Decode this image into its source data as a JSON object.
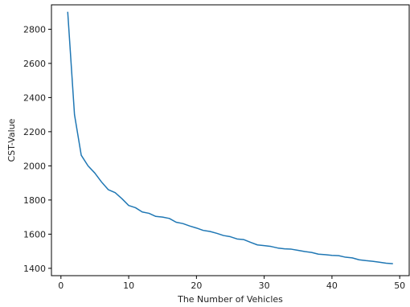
{
  "chart_data": {
    "type": "line",
    "title": "",
    "xlabel": "The Number of Vehicles",
    "ylabel": "CST-Value",
    "xlim": [
      -1.4,
      51.4
    ],
    "ylim": [
      1357,
      2943
    ],
    "xticks": [
      0,
      10,
      20,
      30,
      40,
      50
    ],
    "yticks": [
      1400,
      1600,
      1800,
      2000,
      2200,
      2400,
      2600,
      2800
    ],
    "grid": false,
    "legend": "none",
    "series": [
      {
        "color": "#1f77b4",
        "x": [
          1,
          2,
          3,
          4,
          5,
          6,
          7,
          8,
          9,
          10,
          11,
          12,
          13,
          14,
          15,
          16,
          17,
          18,
          19,
          20,
          21,
          22,
          23,
          24,
          25,
          26,
          27,
          28,
          29,
          30,
          31,
          32,
          33,
          34,
          35,
          36,
          37,
          38,
          39,
          40,
          41,
          42,
          43,
          44,
          45,
          46,
          47,
          48,
          49
        ],
        "values": [
          2902,
          2300,
          2062,
          2000,
          1958,
          1905,
          1860,
          1843,
          1808,
          1768,
          1755,
          1730,
          1722,
          1704,
          1700,
          1692,
          1670,
          1662,
          1648,
          1636,
          1622,
          1616,
          1605,
          1592,
          1585,
          1572,
          1568,
          1552,
          1537,
          1533,
          1528,
          1519,
          1514,
          1512,
          1505,
          1498,
          1493,
          1483,
          1480,
          1476,
          1474,
          1465,
          1461,
          1450,
          1445,
          1441,
          1436,
          1430,
          1427
        ]
      }
    ]
  }
}
